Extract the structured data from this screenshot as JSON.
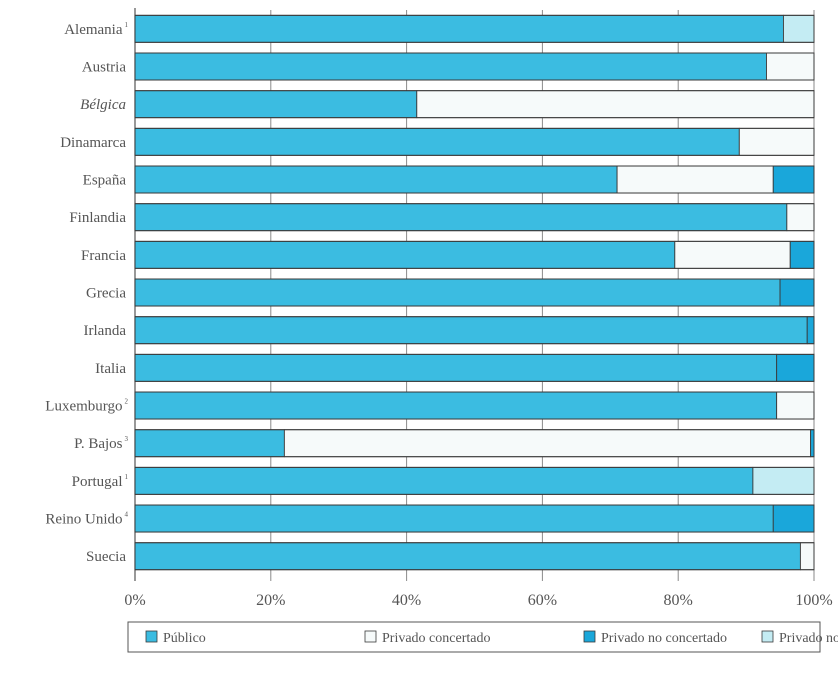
{
  "chart_data": {
    "type": "bar",
    "orientation": "horizontal",
    "stacked": true,
    "percent_stacked": true,
    "categories": [
      "Alemania",
      "Austria",
      "Bélgica",
      "Dinamarca",
      "España",
      "Finlandia",
      "Francia",
      "Grecia",
      "Irlanda",
      "Italia",
      "Luxemburgo",
      "P. Bajos",
      "Portugal",
      "Reino Unido",
      "Suecia"
    ],
    "category_superscripts": [
      "1",
      "",
      "",
      "",
      "",
      "",
      "",
      "",
      "",
      "",
      "2",
      "3",
      "1",
      "4",
      ""
    ],
    "italic_categories": [
      "Bélgica"
    ],
    "series": [
      {
        "name": "Público",
        "color": "#3bbce1",
        "values": [
          95.5,
          93,
          41.5,
          89,
          71,
          96,
          79.5,
          95,
          99,
          94.5,
          94.5,
          22,
          91,
          94,
          98
        ]
      },
      {
        "name": "Privado concertado",
        "color": "#f6fafa",
        "values": [
          0,
          7,
          58.5,
          11,
          23,
          4,
          17,
          0,
          0,
          0,
          5.5,
          77.5,
          0,
          0,
          2
        ]
      },
      {
        "name": "Privado no concertado",
        "color": "#1aa7da",
        "values": [
          0,
          0,
          0,
          0,
          6,
          0,
          3.5,
          5,
          1,
          5.5,
          0,
          0.5,
          0,
          6,
          0
        ]
      },
      {
        "name": "Privado no definido",
        "color": "#c4ecf3",
        "values": [
          4.5,
          0,
          0,
          0,
          0,
          0,
          0,
          0,
          0,
          0,
          0,
          0,
          9,
          0,
          0
        ]
      }
    ],
    "xticks": [
      "0%",
      "20%",
      "40%",
      "60%",
      "80%",
      "100%"
    ],
    "xlim": [
      0,
      100
    ],
    "grid": true,
    "legend_position": "bottom",
    "title": "",
    "xlabel": "",
    "ylabel": ""
  }
}
